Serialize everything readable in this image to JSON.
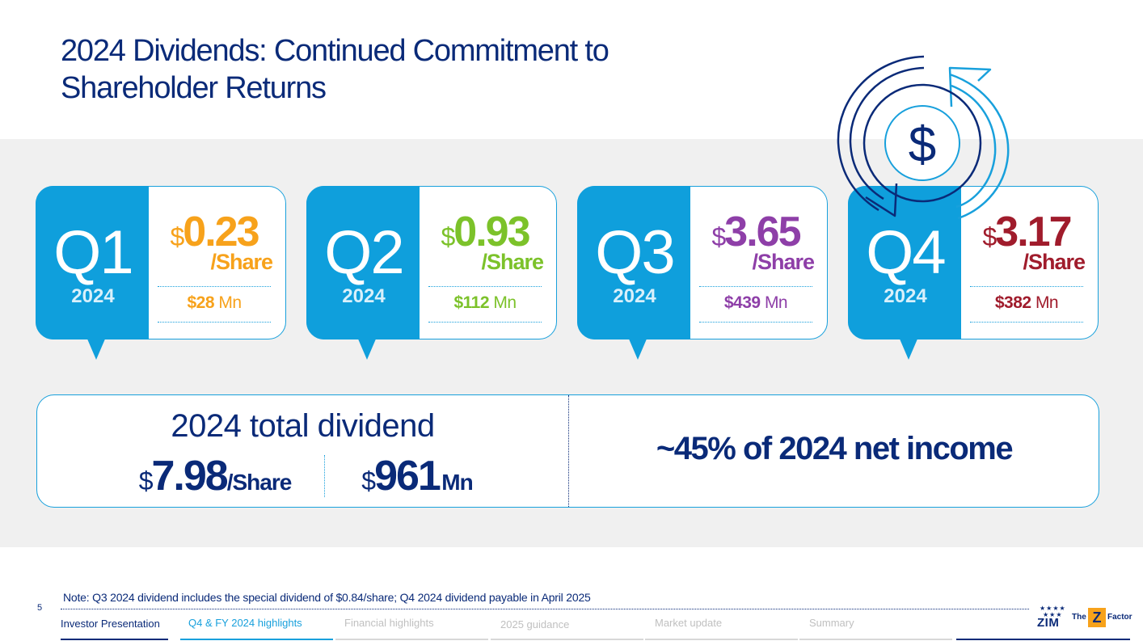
{
  "title": {
    "line1": "2024 Dividends: Continued Commitment to",
    "line2": "Shareholder Returns"
  },
  "quarters": [
    {
      "label": "Q1",
      "year": "2024",
      "currency": "$",
      "amount": "0.23",
      "per_share": "/Share",
      "mn_currency": "$",
      "mn_value": "28",
      "mn_unit": "Mn",
      "color": "#f7a21b"
    },
    {
      "label": "Q2",
      "year": "2024",
      "currency": "$",
      "amount": "0.93",
      "per_share": "/Share",
      "mn_currency": "$",
      "mn_value": "112",
      "mn_unit": "Mn",
      "color": "#7cc22a"
    },
    {
      "label": "Q3",
      "year": "2024",
      "currency": "$",
      "amount": "3.65",
      "per_share": "/Share",
      "mn_currency": "$",
      "mn_value": "439",
      "mn_unit": "Mn",
      "color": "#8e3fa8"
    },
    {
      "label": "Q4",
      "year": "2024",
      "currency": "$",
      "amount": "3.17",
      "per_share": "/Share",
      "mn_currency": "$",
      "mn_value": "382",
      "mn_unit": "Mn",
      "color": "#a01c2c"
    }
  ],
  "total": {
    "title": "2024 total dividend",
    "currency": "$",
    "per_share_value": "7.98",
    "per_share_label": "/Share",
    "mn_currency": "$",
    "mn_value": "961",
    "mn_unit": "Mn",
    "net_income_text": "~45% of 2024 net income"
  },
  "icon": {
    "cycle": "dollar-cycle-icon",
    "symbol": "$"
  },
  "footer": {
    "note": "Note: Q3 2024 dividend includes the special dividend of $0.84/share; Q4 2024 dividend payable in April 2025",
    "page_number": "5",
    "nav": [
      {
        "label": "Investor Presentation"
      },
      {
        "label": "Q4 & FY 2024 highlights"
      },
      {
        "label": "Financial highlights"
      },
      {
        "label": "2025 guidance"
      },
      {
        "label": "Market update"
      },
      {
        "label": "Summary"
      }
    ],
    "logo": {
      "stars": "★★★★",
      "stars2": "★★★",
      "brand": "ZIM",
      "tag": "The",
      "z": "Z",
      "factor": "Factor"
    }
  },
  "colors": {
    "navy": "#0a2a78",
    "blue": "#0f9fdc",
    "border": "#18a0dc",
    "gray_band": "#f0f0f0"
  }
}
